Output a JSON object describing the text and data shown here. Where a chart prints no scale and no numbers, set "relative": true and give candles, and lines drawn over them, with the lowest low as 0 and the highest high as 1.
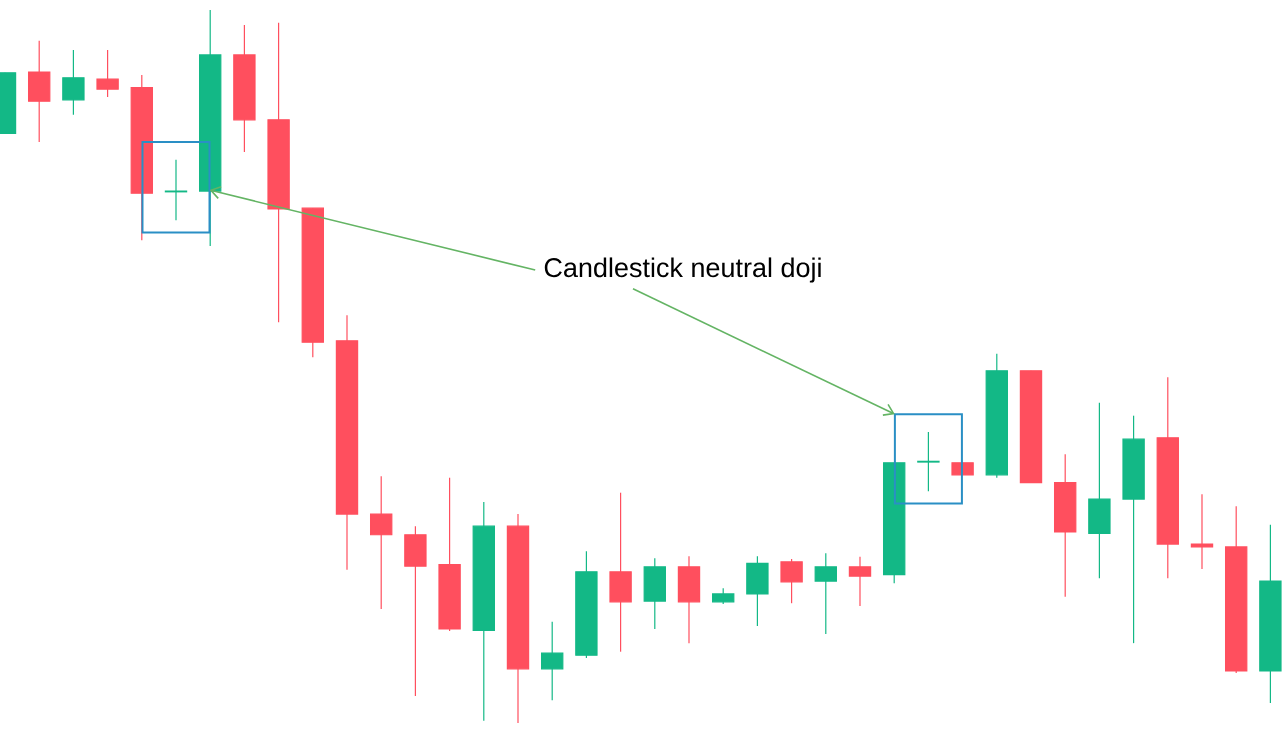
{
  "chart_data": {
    "type": "candlestick",
    "relative": true,
    "categories": [
      null,
      null,
      null,
      null,
      null,
      null,
      null,
      null,
      null,
      null,
      null,
      null,
      null,
      null,
      null,
      null,
      null,
      null,
      null,
      null,
      null,
      null,
      null,
      null,
      null,
      null,
      null,
      null,
      null,
      null,
      null,
      null,
      null,
      null,
      null,
      null,
      null,
      null
    ],
    "ohlc": [
      [
        0.827,
        0.912,
        0.827,
        0.912
      ],
      [
        0.913,
        0.957,
        0.815,
        0.872
      ],
      [
        0.874,
        0.944,
        0.853,
        0.905
      ],
      [
        0.903,
        0.944,
        0.878,
        0.889
      ],
      [
        0.891,
        0.909,
        0.677,
        0.743
      ],
      [
        0.745,
        0.79,
        0.705,
        0.746
      ],
      [
        0.746,
        1.0,
        0.669,
        0.937
      ],
      [
        0.937,
        0.979,
        0.801,
        0.846
      ],
      [
        0.846,
        0.982,
        0.562,
        0.721
      ],
      [
        0.722,
        0.722,
        0.513,
        0.534
      ],
      [
        0.536,
        0.572,
        0.215,
        0.293
      ],
      [
        0.293,
        0.346,
        0.16,
        0.264
      ],
      [
        0.264,
        0.276,
        0.038,
        0.22
      ],
      [
        0.222,
        0.344,
        0.129,
        0.132
      ],
      [
        0.13,
        0.31,
        0.003,
        0.276
      ],
      [
        0.276,
        0.293,
        0.0,
        0.076
      ],
      [
        0.076,
        0.142,
        0.032,
        0.098
      ],
      [
        0.095,
        0.241,
        0.091,
        0.212
      ],
      [
        0.212,
        0.323,
        0.1,
        0.17
      ],
      [
        0.171,
        0.231,
        0.132,
        0.219
      ],
      [
        0.219,
        0.234,
        0.112,
        0.17
      ],
      [
        0.17,
        0.189,
        0.167,
        0.181
      ],
      [
        0.181,
        0.234,
        0.136,
        0.224
      ],
      [
        0.226,
        0.23,
        0.168,
        0.198
      ],
      [
        0.199,
        0.238,
        0.125,
        0.219
      ],
      [
        0.219,
        0.233,
        0.164,
        0.206
      ],
      [
        0.208,
        0.365,
        0.196,
        0.365
      ],
      [
        0.366,
        0.408,
        0.325,
        0.367
      ],
      [
        0.365,
        0.365,
        0.348,
        0.348
      ],
      [
        0.348,
        0.518,
        0.344,
        0.494
      ],
      [
        0.494,
        0.494,
        0.337,
        0.337
      ],
      [
        0.337,
        0.377,
        0.177,
        0.268
      ],
      [
        0.266,
        0.449,
        0.203,
        0.314
      ],
      [
        0.314,
        0.431,
        0.112,
        0.398
      ],
      [
        0.4,
        0.485,
        0.203,
        0.251
      ],
      [
        0.251,
        0.321,
        0.216,
        0.247
      ],
      [
        0.247,
        0.304,
        0.07,
        0.073
      ],
      [
        0.073,
        0.278,
        0.028,
        0.199
      ]
    ],
    "colors": [
      "#13b886",
      "#ff4f5e",
      "#13b886",
      "#ff4f5e",
      "#ff4f5e",
      "#13b886",
      "#13b886",
      "#ff4f5e",
      "#ff4f5e",
      "#ff4f5e",
      "#ff4f5e",
      "#ff4f5e",
      "#ff4f5e",
      "#ff4f5e",
      "#13b886",
      "#ff4f5e",
      "#13b886",
      "#13b886",
      "#ff4f5e",
      "#13b886",
      "#ff4f5e",
      "#13b886",
      "#13b886",
      "#ff4f5e",
      "#13b886",
      "#ff4f5e",
      "#13b886",
      "#13b886",
      "#ff4f5e",
      "#13b886",
      "#ff4f5e",
      "#ff4f5e",
      "#13b886",
      "#13b886",
      "#ff4f5e",
      "#ff4f5e",
      "#ff4f5e",
      "#13b886"
    ],
    "annotations": [
      "Candlestick neutral doji"
    ]
  }
}
